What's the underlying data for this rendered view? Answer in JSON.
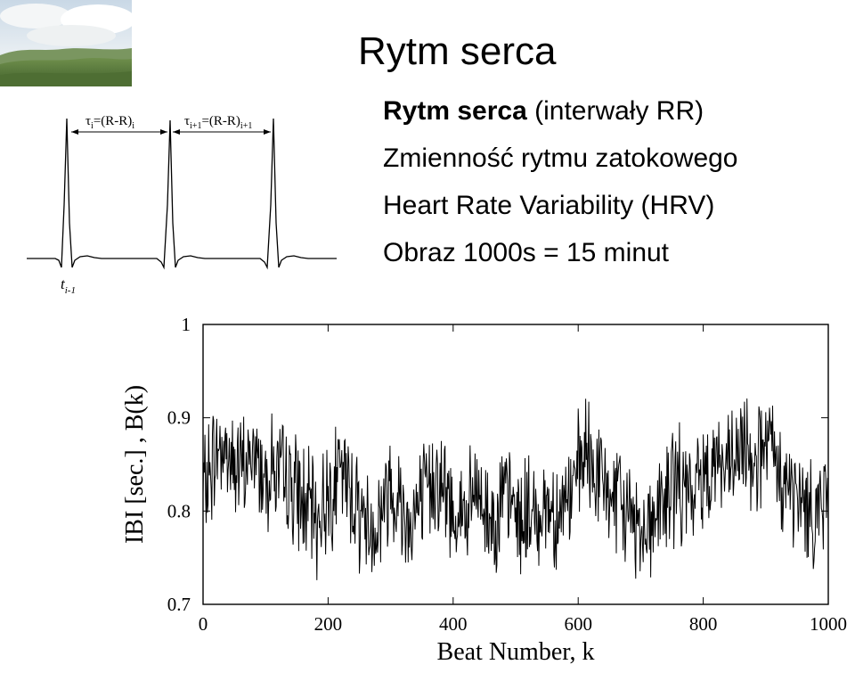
{
  "slide": {
    "title": "Rytm serca",
    "bullets": [
      {
        "bold": "Rytm serca",
        "rest": " (interwały RR)"
      },
      {
        "bold": "",
        "rest": "Zmienność rytmu zatokowego"
      },
      {
        "bold": "",
        "rest": "Heart Rate Variability (HRV)"
      },
      {
        "bold": "",
        "rest": "Obraz 1000s = 15 minut"
      }
    ]
  },
  "ecg_diagram": {
    "label_tau_i": "τi=(R-R)i",
    "label_tau_i1": "τi+1=(R-R)i+1",
    "label_t": "ti-1"
  },
  "chart_data": {
    "type": "line",
    "title": "",
    "xlabel": "Beat Number, k",
    "ylabel": "IBI [sec.] , B(k)",
    "xlim": [
      0,
      1000
    ],
    "ylim": [
      0.7,
      1.0
    ],
    "xticks": [
      0,
      200,
      400,
      600,
      800,
      1000
    ],
    "yticks": [
      0.7,
      0.8,
      0.9,
      1.0
    ],
    "ytick_labels": [
      "0.7",
      "0.8",
      "0.9",
      "1"
    ],
    "grid": false,
    "series": [
      {
        "name": "",
        "color": "#000000",
        "x": [
          0,
          10,
          20,
          30,
          40,
          50,
          60,
          70,
          80,
          90,
          100,
          110,
          120,
          130,
          140,
          150,
          160,
          170,
          180,
          190,
          200,
          210,
          220,
          230,
          240,
          250,
          260,
          270,
          280,
          290,
          300,
          310,
          320,
          330,
          340,
          350,
          360,
          370,
          380,
          390,
          400,
          410,
          420,
          430,
          440,
          450,
          460,
          470,
          480,
          490,
          500,
          510,
          520,
          530,
          540,
          550,
          560,
          570,
          580,
          590,
          600,
          610,
          620,
          630,
          640,
          650,
          660,
          670,
          680,
          690,
          700,
          710,
          720,
          730,
          740,
          750,
          760,
          770,
          780,
          790,
          800,
          810,
          820,
          830,
          840,
          850,
          860,
          870,
          880,
          890,
          900,
          910,
          920,
          930,
          940,
          950,
          960,
          970,
          980,
          990,
          1000
        ],
        "y": [
          0.82,
          0.84,
          0.86,
          0.87,
          0.86,
          0.85,
          0.84,
          0.85,
          0.86,
          0.85,
          0.84,
          0.85,
          0.84,
          0.83,
          0.83,
          0.82,
          0.81,
          0.8,
          0.79,
          0.8,
          0.82,
          0.83,
          0.84,
          0.83,
          0.82,
          0.8,
          0.79,
          0.78,
          0.79,
          0.81,
          0.83,
          0.82,
          0.8,
          0.79,
          0.8,
          0.81,
          0.82,
          0.84,
          0.83,
          0.81,
          0.8,
          0.8,
          0.79,
          0.81,
          0.82,
          0.8,
          0.79,
          0.8,
          0.81,
          0.81,
          0.8,
          0.79,
          0.8,
          0.79,
          0.8,
          0.81,
          0.8,
          0.8,
          0.81,
          0.82,
          0.84,
          0.86,
          0.85,
          0.84,
          0.83,
          0.82,
          0.81,
          0.8,
          0.8,
          0.79,
          0.78,
          0.79,
          0.79,
          0.8,
          0.81,
          0.83,
          0.83,
          0.82,
          0.81,
          0.83,
          0.84,
          0.85,
          0.86,
          0.85,
          0.84,
          0.85,
          0.86,
          0.87,
          0.86,
          0.86,
          0.87,
          0.86,
          0.84,
          0.83,
          0.82,
          0.81,
          0.81,
          0.8,
          0.8,
          0.81,
          0.82
        ]
      }
    ]
  }
}
